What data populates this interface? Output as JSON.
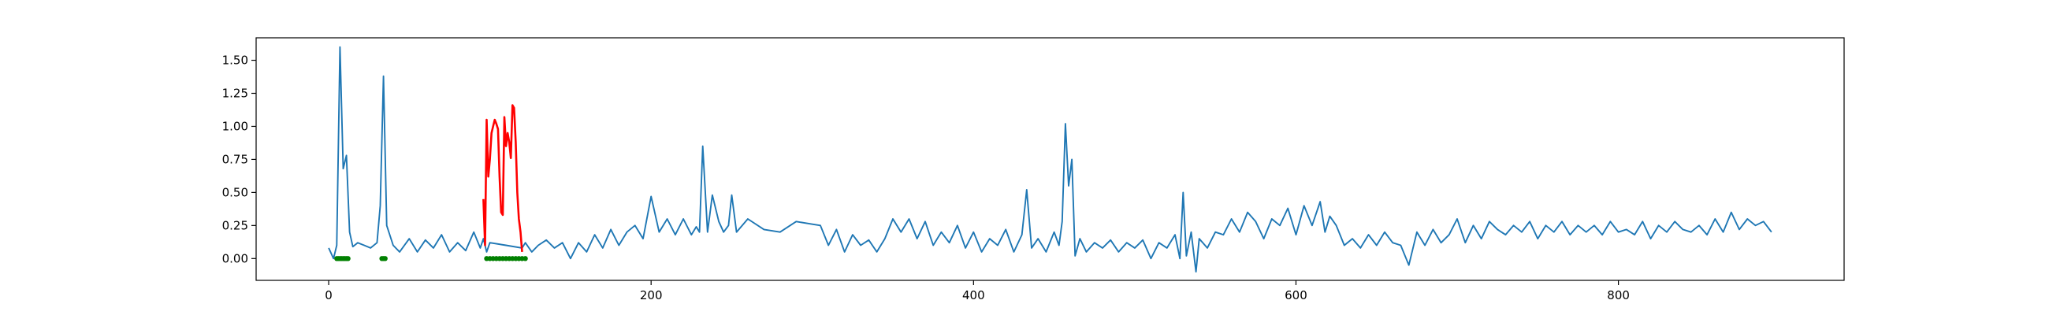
{
  "chart_data": {
    "type": "line",
    "title": "",
    "xlabel": "",
    "ylabel": "",
    "xlim": [
      -45,
      940
    ],
    "ylim": [
      -0.165,
      1.67
    ],
    "xticks": [
      0,
      200,
      400,
      600,
      800
    ],
    "xtick_labels": [
      "0",
      "200",
      "400",
      "600",
      "800"
    ],
    "yticks": [
      0.0,
      0.25,
      0.5,
      0.75,
      1.0,
      1.25,
      1.5
    ],
    "ytick_labels": [
      "0.00",
      "0.25",
      "0.50",
      "0.75",
      "1.00",
      "1.25",
      "1.50"
    ],
    "grid": false,
    "legend": "none",
    "colors": {
      "main": "#1f77b4",
      "anomaly": "#ff0000",
      "marker": "#008000"
    },
    "series": [
      {
        "role": "signal",
        "color": "#1f77b4",
        "style": "line",
        "x": [
          0,
          3,
          5,
          7,
          9,
          11,
          13,
          15,
          18,
          22,
          26,
          30,
          32,
          34,
          36,
          40,
          44,
          50,
          55,
          60,
          65,
          70,
          75,
          80,
          85,
          90,
          94,
          96,
          98,
          100,
          110,
          120,
          122,
          126,
          130,
          135,
          140,
          145,
          150,
          155,
          160,
          165,
          170,
          175,
          180,
          185,
          190,
          195,
          200,
          205,
          210,
          215,
          220,
          225,
          228,
          230,
          232,
          235,
          238,
          242,
          245,
          248,
          250,
          253,
          260,
          270,
          280,
          290,
          300,
          305,
          310,
          315,
          320,
          325,
          330,
          335,
          340,
          345,
          350,
          355,
          360,
          365,
          370,
          375,
          380,
          385,
          390,
          395,
          400,
          405,
          410,
          415,
          420,
          425,
          430,
          433,
          436,
          440,
          445,
          450,
          453,
          455,
          457,
          459,
          461,
          463,
          466,
          470,
          475,
          480,
          485,
          490,
          495,
          500,
          505,
          510,
          515,
          520,
          525,
          528,
          530,
          532,
          535,
          538,
          540,
          545,
          550,
          555,
          560,
          565,
          570,
          575,
          580,
          585,
          590,
          595,
          600,
          605,
          610,
          615,
          618,
          621,
          625,
          630,
          635,
          640,
          645,
          650,
          655,
          660,
          665,
          670,
          675,
          680,
          685,
          690,
          695,
          700,
          705,
          710,
          715,
          720,
          725,
          730,
          735,
          740,
          745,
          750,
          755,
          760,
          765,
          770,
          775,
          780,
          785,
          790,
          795,
          800,
          805,
          810,
          815,
          820,
          825,
          830,
          835,
          840,
          845,
          850,
          855,
          860,
          865,
          870,
          875,
          880,
          885,
          890,
          895
        ],
        "y": [
          0.08,
          0.0,
          0.1,
          1.6,
          0.68,
          0.78,
          0.2,
          0.09,
          0.12,
          0.1,
          0.08,
          0.12,
          0.4,
          1.38,
          0.25,
          0.1,
          0.05,
          0.15,
          0.05,
          0.14,
          0.08,
          0.18,
          0.05,
          0.12,
          0.06,
          0.2,
          0.08,
          0.15,
          0.05,
          0.12,
          0.1,
          0.08,
          0.12,
          0.05,
          0.1,
          0.14,
          0.08,
          0.12,
          0.0,
          0.12,
          0.05,
          0.18,
          0.08,
          0.22,
          0.1,
          0.2,
          0.25,
          0.15,
          0.47,
          0.2,
          0.3,
          0.18,
          0.3,
          0.18,
          0.24,
          0.2,
          0.85,
          0.2,
          0.48,
          0.28,
          0.2,
          0.25,
          0.48,
          0.2,
          0.3,
          0.22,
          0.2,
          0.28,
          0.26,
          0.25,
          0.1,
          0.22,
          0.05,
          0.18,
          0.1,
          0.14,
          0.05,
          0.15,
          0.3,
          0.2,
          0.3,
          0.15,
          0.28,
          0.1,
          0.2,
          0.12,
          0.25,
          0.08,
          0.2,
          0.05,
          0.15,
          0.1,
          0.22,
          0.05,
          0.18,
          0.52,
          0.08,
          0.15,
          0.05,
          0.2,
          0.1,
          0.28,
          1.02,
          0.55,
          0.75,
          0.02,
          0.15,
          0.05,
          0.12,
          0.08,
          0.14,
          0.05,
          0.12,
          0.08,
          0.14,
          0.0,
          0.12,
          0.08,
          0.18,
          0.0,
          0.5,
          0.02,
          0.2,
          -0.1,
          0.15,
          0.08,
          0.2,
          0.18,
          0.3,
          0.2,
          0.35,
          0.28,
          0.15,
          0.3,
          0.25,
          0.38,
          0.18,
          0.4,
          0.25,
          0.43,
          0.2,
          0.32,
          0.25,
          0.1,
          0.15,
          0.08,
          0.18,
          0.1,
          0.2,
          0.12,
          0.1,
          -0.05,
          0.2,
          0.1,
          0.22,
          0.12,
          0.18,
          0.3,
          0.12,
          0.25,
          0.15,
          0.28,
          0.22,
          0.18,
          0.25,
          0.2,
          0.28,
          0.15,
          0.25,
          0.2,
          0.28,
          0.18,
          0.25,
          0.2,
          0.25,
          0.18,
          0.28,
          0.2,
          0.22,
          0.18,
          0.28,
          0.15,
          0.25,
          0.2,
          0.28,
          0.22,
          0.2,
          0.25,
          0.18,
          0.3,
          0.2,
          0.35,
          0.22,
          0.3,
          0.25,
          0.28,
          0.2
        ]
      },
      {
        "role": "anomaly",
        "color": "#ff0000",
        "style": "line",
        "x": [
          96,
          97,
          98,
          99,
          100,
          101,
          102,
          103,
          104,
          105,
          106,
          107,
          108,
          109,
          110,
          111,
          112,
          113,
          114,
          115,
          116,
          117,
          118,
          119,
          120
        ],
        "y": [
          0.45,
          0.1,
          1.05,
          0.62,
          0.75,
          0.95,
          1.0,
          1.05,
          1.02,
          0.98,
          0.62,
          0.35,
          0.33,
          1.07,
          0.85,
          0.95,
          0.88,
          0.76,
          1.16,
          1.14,
          0.88,
          0.5,
          0.3,
          0.2,
          0.05
        ]
      },
      {
        "role": "markers",
        "color": "#008000",
        "style": "points",
        "x": [
          5,
          6,
          7,
          8,
          9,
          10,
          11,
          12,
          33,
          34,
          35,
          98,
          100,
          102,
          104,
          106,
          108,
          110,
          112,
          114,
          116,
          118,
          120,
          122
        ],
        "y": [
          0,
          0,
          0,
          0,
          0,
          0,
          0,
          0,
          0,
          0,
          0,
          0,
          0,
          0,
          0,
          0,
          0,
          0,
          0,
          0,
          0,
          0,
          0,
          0
        ]
      }
    ]
  }
}
